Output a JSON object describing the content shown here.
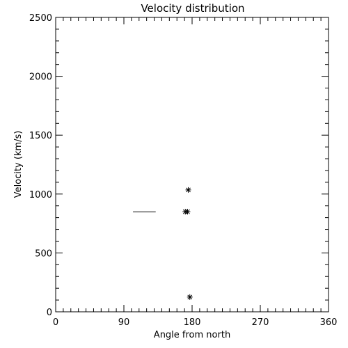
{
  "chart_data": {
    "type": "scatter",
    "title": "Velocity distribution",
    "xlabel": "Angle from north",
    "ylabel": "Velocity (km/s)",
    "xlim": [
      0,
      360
    ],
    "ylim": [
      0,
      2500
    ],
    "xticks": [
      0,
      90,
      180,
      270,
      360
    ],
    "yticks": [
      0,
      500,
      1000,
      1500,
      2000,
      2500
    ],
    "x_minor_step": 10,
    "y_minor_step": 100,
    "grid": false,
    "points": [
      {
        "x": 175,
        "y": 1035
      },
      {
        "x": 171,
        "y": 850
      },
      {
        "x": 174,
        "y": 850
      },
      {
        "x": 177,
        "y": 125
      }
    ],
    "segments": [
      {
        "x0": 102,
        "x1": 132,
        "y": 848
      }
    ]
  }
}
